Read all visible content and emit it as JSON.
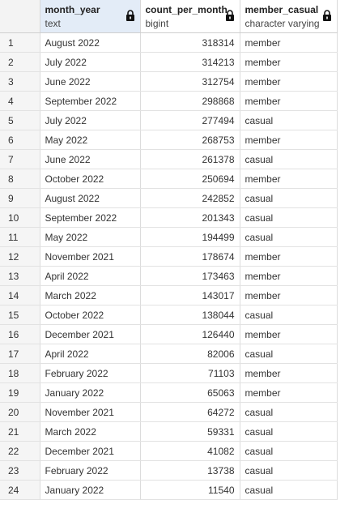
{
  "columns": [
    {
      "name": "month_year",
      "type": "text"
    },
    {
      "name": "count_per_month",
      "type": "bigint"
    },
    {
      "name": "member_casual",
      "type": "character varying"
    }
  ],
  "rows": [
    [
      "1",
      "August 2022",
      "318314",
      "member"
    ],
    [
      "2",
      "July 2022",
      "314213",
      "member"
    ],
    [
      "3",
      "June 2022",
      "312754",
      "member"
    ],
    [
      "4",
      "September 2022",
      "298868",
      "member"
    ],
    [
      "5",
      "July 2022",
      "277494",
      "casual"
    ],
    [
      "6",
      "May 2022",
      "268753",
      "member"
    ],
    [
      "7",
      "June 2022",
      "261378",
      "casual"
    ],
    [
      "8",
      "October 2022",
      "250694",
      "member"
    ],
    [
      "9",
      "August 2022",
      "242852",
      "casual"
    ],
    [
      "10",
      "September 2022",
      "201343",
      "casual"
    ],
    [
      "11",
      "May 2022",
      "194499",
      "casual"
    ],
    [
      "12",
      "November 2021",
      "178674",
      "member"
    ],
    [
      "13",
      "April 2022",
      "173463",
      "member"
    ],
    [
      "14",
      "March 2022",
      "143017",
      "member"
    ],
    [
      "15",
      "October 2022",
      "138044",
      "casual"
    ],
    [
      "16",
      "December 2021",
      "126440",
      "member"
    ],
    [
      "17",
      "April 2022",
      "82006",
      "casual"
    ],
    [
      "18",
      "February 2022",
      "71103",
      "member"
    ],
    [
      "19",
      "January 2022",
      "65063",
      "member"
    ],
    [
      "20",
      "November 2021",
      "64272",
      "casual"
    ],
    [
      "21",
      "March 2022",
      "59331",
      "casual"
    ],
    [
      "22",
      "December 2021",
      "41082",
      "casual"
    ],
    [
      "23",
      "February 2022",
      "13738",
      "casual"
    ],
    [
      "24",
      "January 2022",
      "11540",
      "casual"
    ]
  ],
  "icons": {
    "column_lock": "lock-icon"
  },
  "colors": {
    "selected_column_header": "#e3ecf7",
    "row_number_background": "#f5f5f5",
    "grid_line": "#dcdcdc"
  }
}
